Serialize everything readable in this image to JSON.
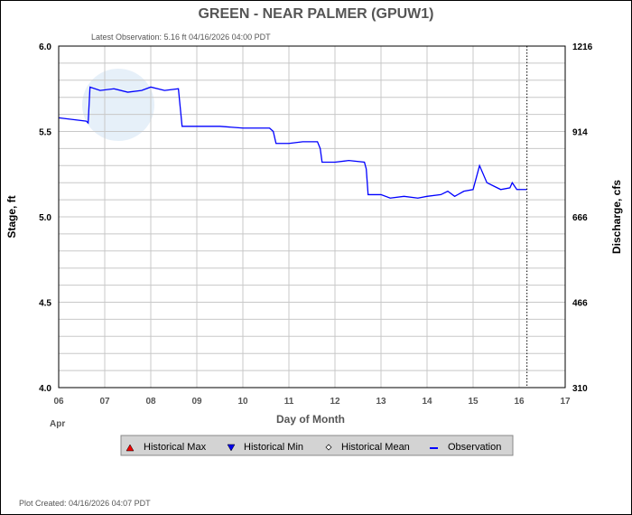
{
  "chart_data": {
    "type": "line",
    "title": "GREEN - NEAR PALMER  (GPUW1)",
    "subtitle": "Latest Observation: 5.16 ft 04/16/2026 04:00 PDT",
    "xlabel": "Day of Month",
    "x_sublabel": "Apr",
    "ylabel": "Stage, ft",
    "y2label": "Discharge, cfs",
    "xlim": [
      6,
      17
    ],
    "ylim": [
      4.0,
      6.0
    ],
    "x_ticks": [
      "06",
      "07",
      "08",
      "09",
      "10",
      "11",
      "12",
      "13",
      "14",
      "15",
      "16",
      "17"
    ],
    "y_ticks": [
      "4.0",
      "4.5",
      "5.0",
      "5.5",
      "6.0"
    ],
    "y2_ticks": [
      "310",
      "466",
      "666",
      "914",
      "1216"
    ],
    "grid": true,
    "latest_time_day": 16.17,
    "legend_position": "bottom",
    "legend": [
      {
        "label": "Historical Max",
        "color": "#ff0000",
        "symbol": "triangle-up"
      },
      {
        "label": "Historical Min",
        "color": "#0000ff",
        "symbol": "triangle-down"
      },
      {
        "label": "Historical Mean",
        "color": "#000000",
        "symbol": "diamond"
      },
      {
        "label": "Observation",
        "color": "#0000ff",
        "symbol": "line"
      }
    ],
    "series": [
      {
        "name": "Observation",
        "color": "#0000ff",
        "x": [
          6.0,
          6.3,
          6.6,
          6.64,
          6.68,
          6.9,
          7.2,
          7.5,
          7.8,
          8.0,
          8.3,
          8.6,
          8.68,
          8.72,
          9.0,
          9.5,
          10.0,
          10.3,
          10.58,
          10.66,
          10.72,
          11.0,
          11.3,
          11.62,
          11.68,
          11.72,
          12.0,
          12.3,
          12.64,
          12.68,
          12.72,
          13.0,
          13.2,
          13.5,
          13.8,
          14.0,
          14.3,
          14.45,
          14.6,
          14.8,
          15.0,
          15.14,
          15.3,
          15.45,
          15.6,
          15.8,
          15.85,
          15.95,
          16.17
        ],
        "y": [
          5.58,
          5.57,
          5.56,
          5.55,
          5.76,
          5.74,
          5.75,
          5.73,
          5.74,
          5.76,
          5.74,
          5.75,
          5.53,
          5.53,
          5.53,
          5.53,
          5.52,
          5.52,
          5.52,
          5.5,
          5.43,
          5.43,
          5.44,
          5.44,
          5.4,
          5.32,
          5.32,
          5.33,
          5.32,
          5.28,
          5.13,
          5.13,
          5.11,
          5.12,
          5.11,
          5.12,
          5.13,
          5.15,
          5.12,
          5.15,
          5.16,
          5.3,
          5.2,
          5.18,
          5.16,
          5.17,
          5.2,
          5.16,
          5.16
        ]
      }
    ]
  },
  "footer": {
    "created": "Plot Created: 04/16/2026 04:07 PDT"
  }
}
